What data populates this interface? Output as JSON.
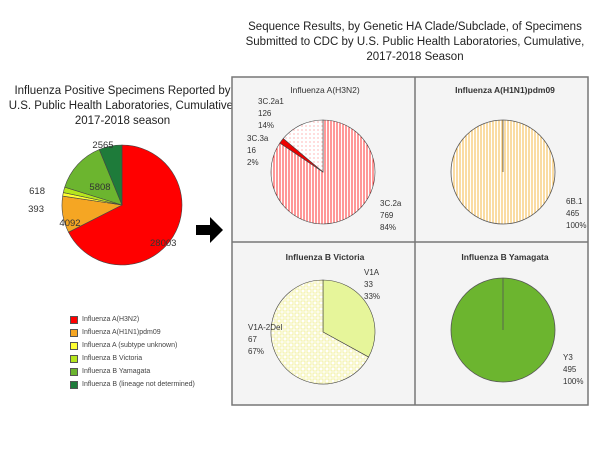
{
  "chart_data": [
    {
      "type": "pie",
      "title": "Influenza Positive Specimens Reported by U.S. Public Health Laboratories, Cumulative, 2017-2018 season",
      "categories": [
        "Influenza A(H3N2)",
        "Influenza A(H1N1)pdm09",
        "Influenza A (subtype unknown)",
        "Influenza B Victoria",
        "Influenza B Yamagata",
        "Influenza B (lineage not determined)"
      ],
      "values": [
        28003,
        4092,
        393,
        618,
        5808,
        2565
      ],
      "colors": [
        "#ff0000",
        "#f5a623",
        "#ffff33",
        "#b5e61d",
        "#6cb52f",
        "#1e7b3a"
      ],
      "legend": "bottom"
    },
    {
      "type": "pie",
      "suptitle": "Sequence Results, by Genetic HA Clade/Subclade, of Specimens Submitted to CDC by U.S. Public Health Laboratories, Cumulative, 2017-2018 Season",
      "panels": [
        {
          "title": "Influenza A(H3N2)",
          "categories": [
            "3C.2a",
            "3C.3a",
            "3C.2a1"
          ],
          "values": [
            769,
            16,
            126
          ],
          "percents": [
            "84%",
            "2%",
            "14%"
          ],
          "colors": [
            "#f44",
            "#e00",
            "#fdd"
          ]
        },
        {
          "title": "Influenza A(H1N1)pdm09",
          "categories": [
            "6B.1"
          ],
          "values": [
            465
          ],
          "percents": [
            "100%"
          ],
          "colors": [
            "#fde2b0"
          ]
        },
        {
          "title": "Influenza B Victoria",
          "categories": [
            "V1A",
            "V1A-2Del"
          ],
          "values": [
            33,
            67
          ],
          "percents": [
            "33%",
            "67%"
          ],
          "colors": [
            "#e6f59a",
            "#fffde0"
          ]
        },
        {
          "title": "Influenza B Yamagata",
          "categories": [
            "Y3"
          ],
          "values": [
            495
          ],
          "percents": [
            "100%"
          ],
          "colors": [
            "#6cb52f"
          ]
        }
      ]
    }
  ]
}
